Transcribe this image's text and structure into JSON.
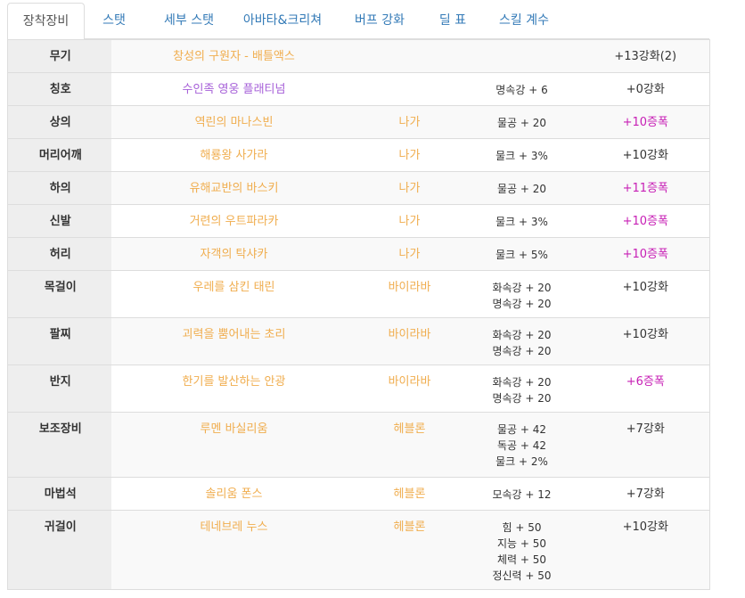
{
  "tabs": [
    {
      "label": "장착장비",
      "active": true
    },
    {
      "label": "스탯",
      "active": false
    },
    {
      "label": "세부 스탯",
      "active": false
    },
    {
      "label": "아바타&크리쳐",
      "active": false
    },
    {
      "label": "버프 강화",
      "active": false
    },
    {
      "label": "딜 표",
      "active": false
    },
    {
      "label": "스킬 계수",
      "active": false
    }
  ],
  "colors": {
    "item_name": "#f0ad4e",
    "title_name": "#a65fd8",
    "amplify": "#c71fb5",
    "tab_link": "#337ab7"
  },
  "equipment": [
    {
      "slot": "무기",
      "item": "창성의 구원자 - 배틀액스",
      "set": "",
      "stats": [],
      "enhance": "+13강화(2)",
      "enhance_type": "normal",
      "item_type": "normal"
    },
    {
      "slot": "칭호",
      "item": "수인족 영웅 플래티넘",
      "set": "",
      "stats": [
        "명속강 + 6"
      ],
      "enhance": "+0강화",
      "enhance_type": "normal",
      "item_type": "title"
    },
    {
      "slot": "상의",
      "item": "역린의 마나스빈",
      "set": "나가",
      "stats": [
        "물공 + 20"
      ],
      "enhance": "+10증폭",
      "enhance_type": "amplify",
      "item_type": "normal"
    },
    {
      "slot": "머리어깨",
      "item": "해룡왕 사가라",
      "set": "나가",
      "stats": [
        "물크 + 3%"
      ],
      "enhance": "+10강화",
      "enhance_type": "normal",
      "item_type": "normal"
    },
    {
      "slot": "하의",
      "item": "유해교반의 바스키",
      "set": "나가",
      "stats": [
        "물공 + 20"
      ],
      "enhance": "+11증폭",
      "enhance_type": "amplify",
      "item_type": "normal"
    },
    {
      "slot": "신발",
      "item": "거련의 우트파라카",
      "set": "나가",
      "stats": [
        "물크 + 3%"
      ],
      "enhance": "+10증폭",
      "enhance_type": "amplify",
      "item_type": "normal"
    },
    {
      "slot": "허리",
      "item": "자객의 탁샤카",
      "set": "나가",
      "stats": [
        "물크 + 5%"
      ],
      "enhance": "+10증폭",
      "enhance_type": "amplify",
      "item_type": "normal"
    },
    {
      "slot": "목걸이",
      "item": "우레를 삼킨 태린",
      "set": "바이라바",
      "stats": [
        "화속강 + 20",
        "명속강 + 20"
      ],
      "enhance": "+10강화",
      "enhance_type": "normal",
      "item_type": "normal"
    },
    {
      "slot": "팔찌",
      "item": "괴력을 뿜어내는 초리",
      "set": "바이라바",
      "stats": [
        "화속강 + 20",
        "명속강 + 20"
      ],
      "enhance": "+10강화",
      "enhance_type": "normal",
      "item_type": "normal"
    },
    {
      "slot": "반지",
      "item": "한기를 발산하는 안광",
      "set": "바이라바",
      "stats": [
        "화속강 + 20",
        "명속강 + 20"
      ],
      "enhance": "+6증폭",
      "enhance_type": "amplify",
      "item_type": "normal"
    },
    {
      "slot": "보조장비",
      "item": "루멘 바실리움",
      "set": "헤블론",
      "stats": [
        "물공 + 42",
        "독공 + 42",
        "물크 + 2%"
      ],
      "enhance": "+7강화",
      "enhance_type": "normal",
      "item_type": "normal"
    },
    {
      "slot": "마법석",
      "item": "솔리움 폰스",
      "set": "헤블론",
      "stats": [
        "모속강 + 12"
      ],
      "enhance": "+7강화",
      "enhance_type": "normal",
      "item_type": "normal"
    },
    {
      "slot": "귀걸이",
      "item": "테네브레 누스",
      "set": "헤블론",
      "stats": [
        "힘 + 50",
        "지능 + 50",
        "체력 + 50",
        "정신력 + 50"
      ],
      "enhance": "+10강화",
      "enhance_type": "normal",
      "item_type": "normal"
    }
  ]
}
